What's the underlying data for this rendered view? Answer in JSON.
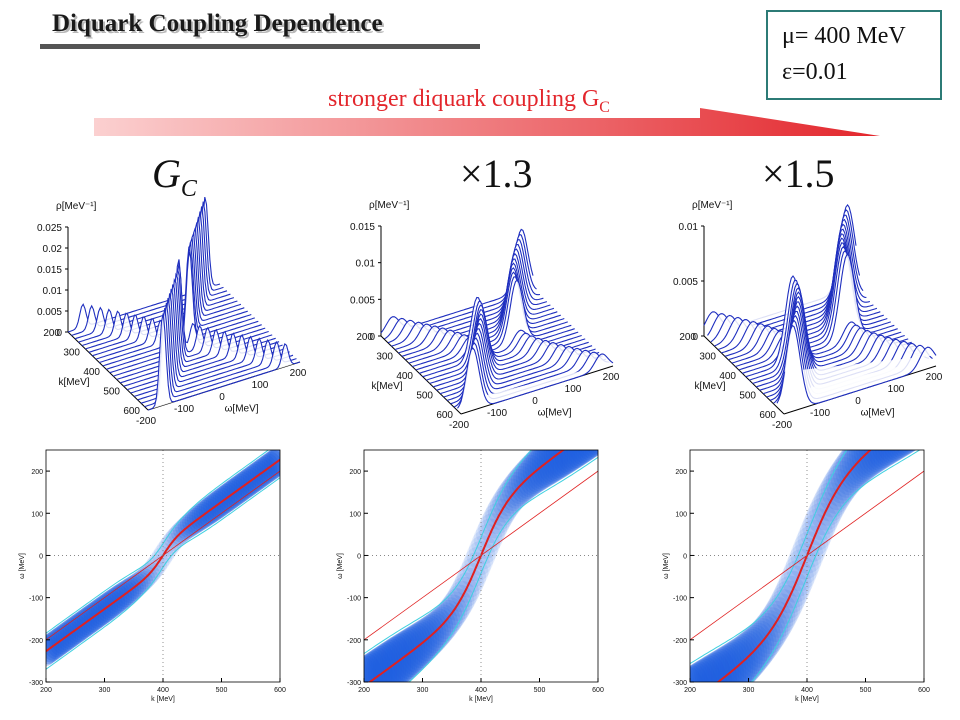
{
  "title": "Diquark Coupling Dependence",
  "params": {
    "mu": "= 400 MeV",
    "epsilon": "=0.01",
    "mu_symbol": "μ",
    "epsilon_symbol": "ε"
  },
  "arrow_label": {
    "text": "stronger diquark coupling G",
    "sub": "C"
  },
  "columns": [
    {
      "label_main": "G",
      "label_sub": "C"
    },
    {
      "label_main": "×1.3",
      "label_sub": ""
    },
    {
      "label_main": "×1.5",
      "label_sub": ""
    }
  ],
  "colors": {
    "title_shadow": "#b8b8b8",
    "box_border": "#2c7b76",
    "arrow_red": "#e3262c",
    "surface_line": "#1f2fbf",
    "heat_blue": "#1f5fe0",
    "contour": "#3fd0e0",
    "dispersion": "#e02020"
  },
  "chart_data": [
    {
      "type": "surface3d",
      "panel": 1,
      "zlabel": "ρ[MeV⁻¹]",
      "xlabel": "k[MeV]",
      "ylabel": "ω[MeV]",
      "z_ticks": [
        "0",
        "0.005",
        "0.01",
        "0.015",
        "0.02",
        "0.025"
      ],
      "k_ticks": [
        "200",
        "300",
        "400",
        "500",
        "600"
      ],
      "w_ticks": [
        "-200",
        "-100",
        "0",
        "100",
        "200"
      ],
      "zlim": [
        0,
        0.025
      ],
      "peak_height": 0.022,
      "peak_width": 14,
      "coupling_factor": 1.0
    },
    {
      "type": "surface3d",
      "panel": 2,
      "zlabel": "ρ[MeV⁻¹]",
      "xlabel": "k[MeV]",
      "ylabel": "ω[MeV]",
      "z_ticks": [
        "0",
        "0.005",
        "0.01",
        "0.015"
      ],
      "k_ticks": [
        "200",
        "300",
        "400",
        "500",
        "600"
      ],
      "w_ticks": [
        "-200",
        "-100",
        "0",
        "100",
        "200"
      ],
      "zlim": [
        0,
        0.015
      ],
      "peak_height": 0.0085,
      "peak_width": 30,
      "coupling_factor": 1.3
    },
    {
      "type": "surface3d",
      "panel": 3,
      "zlabel": "ρ[MeV⁻¹]",
      "xlabel": "k[MeV]",
      "ylabel": "ω[MeV]",
      "z_ticks": [
        "0",
        "0.005",
        "0.01"
      ],
      "k_ticks": [
        "200",
        "300",
        "400",
        "500",
        "600"
      ],
      "w_ticks": [
        "-200",
        "-100",
        "0",
        "100",
        "200"
      ],
      "zlim": [
        0,
        0.01
      ],
      "peak_height": 0.0078,
      "peak_width": 34,
      "coupling_factor": 1.5
    },
    {
      "type": "heatmap",
      "panel": 4,
      "xlabel": "k [MeV]",
      "ylabel": "ω [MeV]",
      "xlim": [
        200,
        600
      ],
      "ylim": [
        -300,
        250
      ],
      "x_ticks": [
        "200",
        "300",
        "400",
        "500",
        "600"
      ],
      "y_ticks": [
        "-300",
        "-200",
        "-100",
        "0",
        "100",
        "200"
      ],
      "gap": 45,
      "coupling_factor": 1.0
    },
    {
      "type": "heatmap",
      "panel": 5,
      "xlabel": "k [MeV]",
      "ylabel": "ω [MeV]",
      "xlim": [
        200,
        600
      ],
      "ylim": [
        -300,
        250
      ],
      "x_ticks": [
        "200",
        "300",
        "400",
        "500",
        "600"
      ],
      "y_ticks": [
        "-300",
        "-200",
        "-100",
        "0",
        "100",
        "200"
      ],
      "gap": 110,
      "coupling_factor": 1.3
    },
    {
      "type": "heatmap",
      "panel": 6,
      "xlabel": "k [MeV]",
      "ylabel": "ω [MeV]",
      "xlim": [
        200,
        600
      ],
      "ylim": [
        -300,
        250
      ],
      "x_ticks": [
        "200",
        "300",
        "400",
        "500",
        "600"
      ],
      "y_ticks": [
        "-300",
        "-200",
        "-100",
        "0",
        "100",
        "200"
      ],
      "gap": 150,
      "coupling_factor": 1.5
    }
  ]
}
